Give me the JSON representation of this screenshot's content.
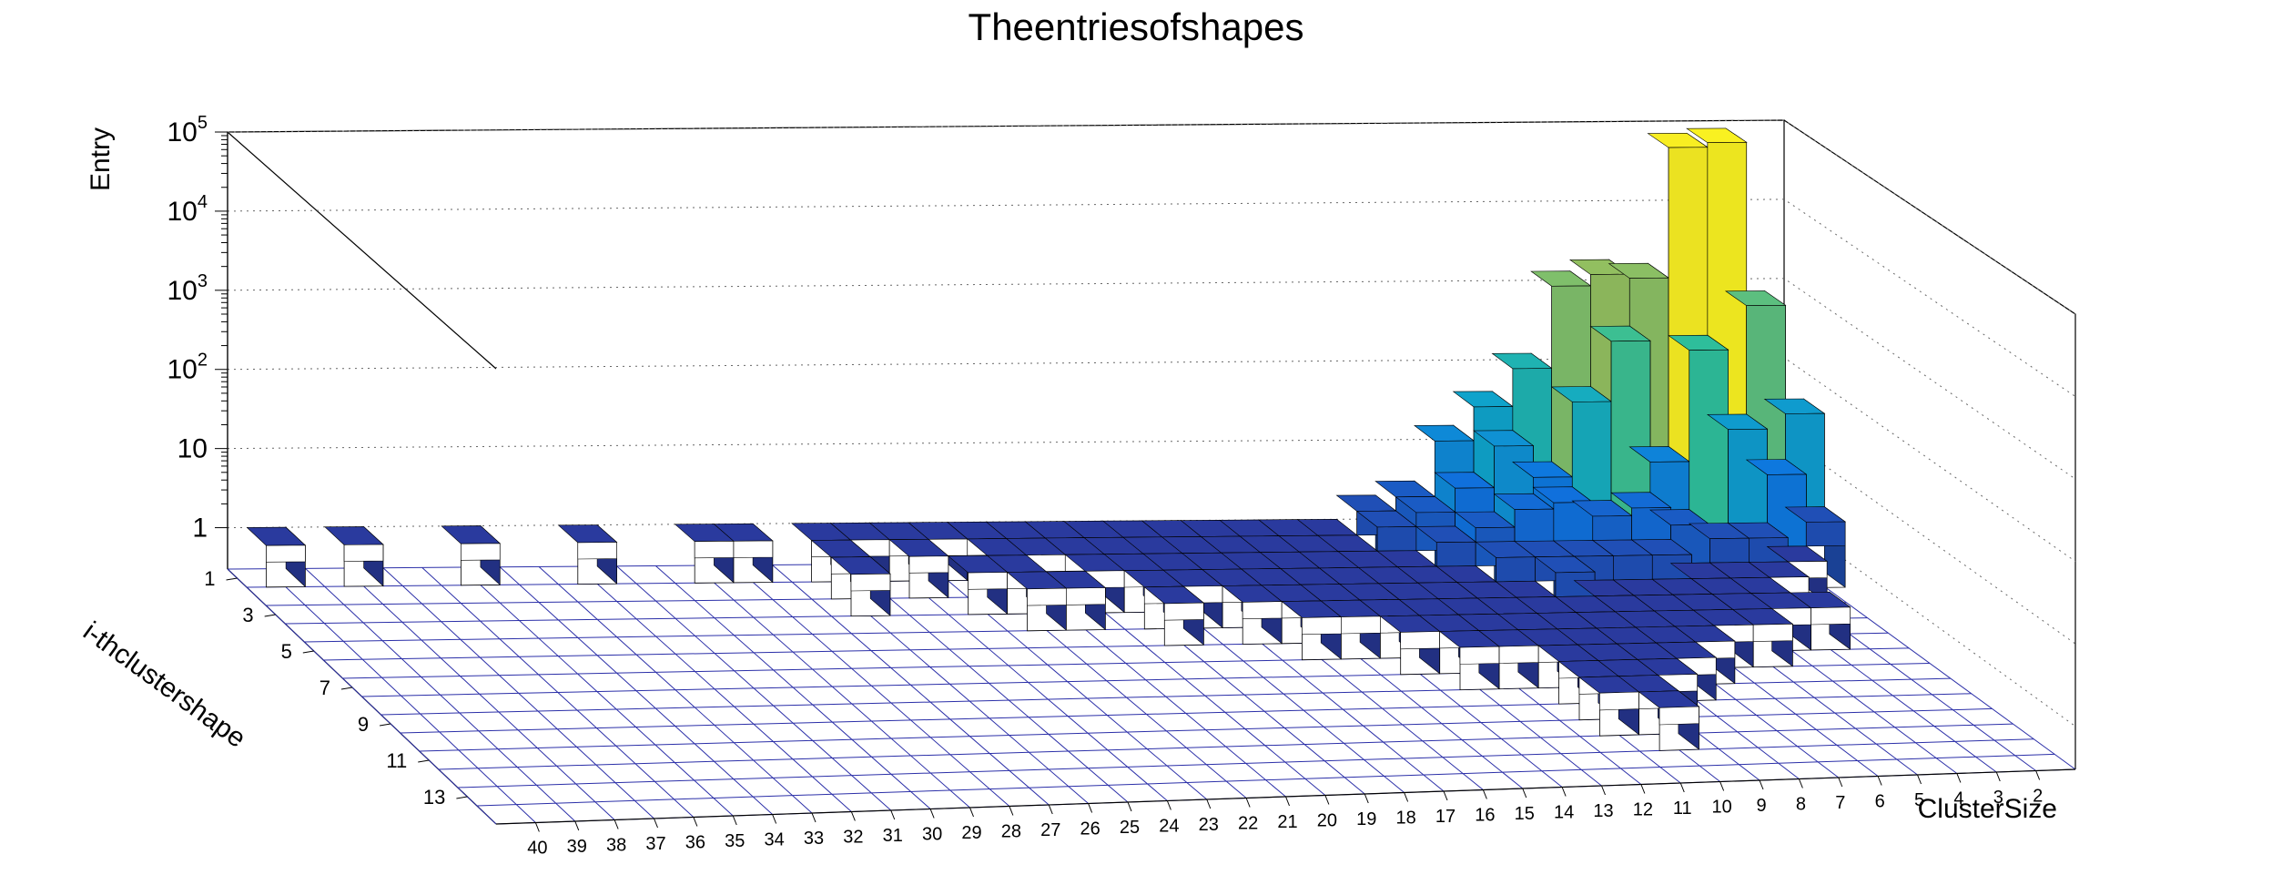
{
  "chart_data": {
    "type": "lego3d",
    "title": "Theentriesofshapes",
    "xlabel": "ClusterSize",
    "ylabel": "i-thclustershape",
    "zlabel": "Entry",
    "z_scale": "log",
    "z_ticks": [
      {
        "base": "1",
        "exp": ""
      },
      {
        "base": "10",
        "exp": ""
      },
      {
        "base": "10",
        "exp": "2"
      },
      {
        "base": "10",
        "exp": "3"
      },
      {
        "base": "10",
        "exp": "4"
      },
      {
        "base": "10",
        "exp": "5"
      }
    ],
    "x_ticks": [
      "40",
      "39",
      "38",
      "37",
      "36",
      "35",
      "34",
      "33",
      "32",
      "31",
      "30",
      "29",
      "28",
      "27",
      "26",
      "25",
      "24",
      "23",
      "22",
      "21",
      "20",
      "19",
      "18",
      "17",
      "16",
      "15",
      "14",
      "13",
      "12",
      "11",
      "10",
      "9",
      "8",
      "7",
      "6",
      "5",
      "4",
      "3",
      "2"
    ],
    "y_ticks": [
      "1",
      "3",
      "5",
      "7",
      "9",
      "11",
      "13"
    ],
    "xlim": [
      1,
      41
    ],
    "ylim": [
      0.5,
      14.5
    ],
    "zlim": [
      0.3,
      100000
    ],
    "grid": true,
    "palette": [
      "#2a3a9e",
      "#0e74e0",
      "#0fa7c9",
      "#2fbf9a",
      "#9cbf5a",
      "#e9c636",
      "#fbf71e"
    ],
    "bins": [
      {
        "x": 40,
        "y": 1,
        "z": 1
      },
      {
        "x": 38,
        "y": 1,
        "z": 1
      },
      {
        "x": 35,
        "y": 1,
        "z": 1
      },
      {
        "x": 32,
        "y": 1,
        "z": 1
      },
      {
        "x": 29,
        "y": 1,
        "z": 1
      },
      {
        "x": 28,
        "y": 1,
        "z": 1
      },
      {
        "x": 26,
        "y": 1,
        "z": 1
      },
      {
        "x": 25,
        "y": 1,
        "z": 1
      },
      {
        "x": 24,
        "y": 1,
        "z": 1
      },
      {
        "x": 23,
        "y": 1,
        "z": 1
      },
      {
        "x": 22,
        "y": 1,
        "z": 1
      },
      {
        "x": 21,
        "y": 1,
        "z": 1
      },
      {
        "x": 20,
        "y": 1,
        "z": 1
      },
      {
        "x": 19,
        "y": 1,
        "z": 1
      },
      {
        "x": 18,
        "y": 1,
        "z": 1
      },
      {
        "x": 17,
        "y": 1,
        "z": 1
      },
      {
        "x": 16,
        "y": 1,
        "z": 1
      },
      {
        "x": 15,
        "y": 1,
        "z": 1
      },
      {
        "x": 14,
        "y": 1,
        "z": 1
      },
      {
        "x": 13,
        "y": 1,
        "z": 1
      },
      {
        "x": 12,
        "y": 1,
        "z": 2
      },
      {
        "x": 11,
        "y": 1,
        "z": 3
      },
      {
        "x": 10,
        "y": 1,
        "z": 15
      },
      {
        "x": 9,
        "y": 1,
        "z": 40
      },
      {
        "x": 8,
        "y": 1,
        "z": 120
      },
      {
        "x": 7,
        "y": 1,
        "z": 1300
      },
      {
        "x": 6,
        "y": 1,
        "z": 1800
      },
      {
        "x": 5,
        "y": 1,
        "z": 1600
      },
      {
        "x": 4,
        "y": 1,
        "z": 70000
      },
      {
        "x": 3,
        "y": 1,
        "z": 80000
      },
      {
        "x": 2,
        "y": 1,
        "z": 700
      },
      {
        "x": 1,
        "y": 1,
        "z": 30
      },
      {
        "x": 26,
        "y": 2,
        "z": 1
      },
      {
        "x": 24,
        "y": 2,
        "z": 1
      },
      {
        "x": 22,
        "y": 2,
        "z": 1
      },
      {
        "x": 21,
        "y": 2,
        "z": 1
      },
      {
        "x": 20,
        "y": 2,
        "z": 1
      },
      {
        "x": 19,
        "y": 2,
        "z": 1
      },
      {
        "x": 18,
        "y": 2,
        "z": 1
      },
      {
        "x": 17,
        "y": 2,
        "z": 1
      },
      {
        "x": 16,
        "y": 2,
        "z": 1
      },
      {
        "x": 15,
        "y": 2,
        "z": 1
      },
      {
        "x": 14,
        "y": 2,
        "z": 1
      },
      {
        "x": 13,
        "y": 2,
        "z": 1
      },
      {
        "x": 12,
        "y": 2,
        "z": 2
      },
      {
        "x": 11,
        "y": 2,
        "z": 3
      },
      {
        "x": 10,
        "y": 2,
        "z": 6
      },
      {
        "x": 9,
        "y": 2,
        "z": 20
      },
      {
        "x": 8,
        "y": 2,
        "z": 8
      },
      {
        "x": 7,
        "y": 2,
        "z": 70
      },
      {
        "x": 6,
        "y": 2,
        "z": 400
      },
      {
        "x": 5,
        "y": 2,
        "z": 12
      },
      {
        "x": 4,
        "y": 2,
        "z": 300
      },
      {
        "x": 3,
        "y": 2,
        "z": 30
      },
      {
        "x": 2,
        "y": 2,
        "z": 8
      },
      {
        "x": 1,
        "y": 2,
        "z": 2
      },
      {
        "x": 26,
        "y": 3,
        "z": 1
      },
      {
        "x": 23,
        "y": 3,
        "z": 1
      },
      {
        "x": 22,
        "y": 3,
        "z": 1
      },
      {
        "x": 20,
        "y": 3,
        "z": 1
      },
      {
        "x": 19,
        "y": 3,
        "z": 1
      },
      {
        "x": 18,
        "y": 3,
        "z": 1
      },
      {
        "x": 17,
        "y": 3,
        "z": 1
      },
      {
        "x": 16,
        "y": 3,
        "z": 1
      },
      {
        "x": 15,
        "y": 3,
        "z": 1
      },
      {
        "x": 14,
        "y": 3,
        "z": 1
      },
      {
        "x": 13,
        "y": 3,
        "z": 1
      },
      {
        "x": 12,
        "y": 3,
        "z": 1
      },
      {
        "x": 11,
        "y": 3,
        "z": 2
      },
      {
        "x": 10,
        "y": 3,
        "z": 3
      },
      {
        "x": 9,
        "y": 3,
        "z": 5
      },
      {
        "x": 8,
        "y": 3,
        "z": 6
      },
      {
        "x": 7,
        "y": 3,
        "z": 4
      },
      {
        "x": 6,
        "y": 3,
        "z": 5
      },
      {
        "x": 5,
        "y": 3,
        "z": 3
      },
      {
        "x": 4,
        "y": 3,
        "z": 2
      },
      {
        "x": 3,
        "y": 3,
        "z": 2
      },
      {
        "x": 2,
        "y": 3,
        "z": 1
      },
      {
        "x": 22,
        "y": 4,
        "z": 1
      },
      {
        "x": 21,
        "y": 4,
        "z": 1
      },
      {
        "x": 19,
        "y": 4,
        "z": 1
      },
      {
        "x": 18,
        "y": 4,
        "z": 1
      },
      {
        "x": 17,
        "y": 4,
        "z": 1
      },
      {
        "x": 16,
        "y": 4,
        "z": 1
      },
      {
        "x": 15,
        "y": 4,
        "z": 1
      },
      {
        "x": 14,
        "y": 4,
        "z": 1
      },
      {
        "x": 13,
        "y": 4,
        "z": 1
      },
      {
        "x": 12,
        "y": 4,
        "z": 1
      },
      {
        "x": 11,
        "y": 4,
        "z": 1
      },
      {
        "x": 10,
        "y": 4,
        "z": 2
      },
      {
        "x": 9,
        "y": 4,
        "z": 2
      },
      {
        "x": 8,
        "y": 4,
        "z": 2
      },
      {
        "x": 7,
        "y": 4,
        "z": 2
      },
      {
        "x": 6,
        "y": 4,
        "z": 2
      },
      {
        "x": 5,
        "y": 4,
        "z": 1
      },
      {
        "x": 4,
        "y": 4,
        "z": 1
      },
      {
        "x": 3,
        "y": 4,
        "z": 1
      },
      {
        "x": 19,
        "y": 5,
        "z": 1
      },
      {
        "x": 17,
        "y": 5,
        "z": 1
      },
      {
        "x": 16,
        "y": 5,
        "z": 1
      },
      {
        "x": 15,
        "y": 5,
        "z": 1
      },
      {
        "x": 14,
        "y": 5,
        "z": 1
      },
      {
        "x": 13,
        "y": 5,
        "z": 1
      },
      {
        "x": 12,
        "y": 5,
        "z": 1
      },
      {
        "x": 11,
        "y": 5,
        "z": 1
      },
      {
        "x": 10,
        "y": 5,
        "z": 1
      },
      {
        "x": 9,
        "y": 5,
        "z": 2
      },
      {
        "x": 8,
        "y": 5,
        "z": 1
      },
      {
        "x": 7,
        "y": 5,
        "z": 1
      },
      {
        "x": 6,
        "y": 5,
        "z": 1
      },
      {
        "x": 5,
        "y": 5,
        "z": 1
      },
      {
        "x": 4,
        "y": 5,
        "z": 1
      },
      {
        "x": 16,
        "y": 6,
        "z": 1
      },
      {
        "x": 15,
        "y": 6,
        "z": 1
      },
      {
        "x": 14,
        "y": 6,
        "z": 1
      },
      {
        "x": 13,
        "y": 6,
        "z": 1
      },
      {
        "x": 12,
        "y": 6,
        "z": 1
      },
      {
        "x": 11,
        "y": 6,
        "z": 1
      },
      {
        "x": 10,
        "y": 6,
        "z": 1
      },
      {
        "x": 9,
        "y": 6,
        "z": 1
      },
      {
        "x": 8,
        "y": 6,
        "z": 1
      },
      {
        "x": 7,
        "y": 6,
        "z": 1
      },
      {
        "x": 6,
        "y": 6,
        "z": 1
      },
      {
        "x": 5,
        "y": 6,
        "z": 1
      },
      {
        "x": 4,
        "y": 6,
        "z": 1
      },
      {
        "x": 3,
        "y": 6,
        "z": 1
      },
      {
        "x": 14,
        "y": 7,
        "z": 1
      },
      {
        "x": 13,
        "y": 7,
        "z": 1
      },
      {
        "x": 12,
        "y": 7,
        "z": 1
      },
      {
        "x": 11,
        "y": 7,
        "z": 1
      },
      {
        "x": 10,
        "y": 7,
        "z": 1
      },
      {
        "x": 9,
        "y": 7,
        "z": 1
      },
      {
        "x": 8,
        "y": 7,
        "z": 1
      },
      {
        "x": 7,
        "y": 7,
        "z": 1
      },
      {
        "x": 6,
        "y": 7,
        "z": 1
      },
      {
        "x": 5,
        "y": 7,
        "z": 1
      },
      {
        "x": 13,
        "y": 8,
        "z": 1
      },
      {
        "x": 12,
        "y": 8,
        "z": 1
      },
      {
        "x": 11,
        "y": 8,
        "z": 1
      },
      {
        "x": 10,
        "y": 8,
        "z": 1
      },
      {
        "x": 9,
        "y": 8,
        "z": 1
      },
      {
        "x": 8,
        "y": 8,
        "z": 1
      },
      {
        "x": 7,
        "y": 8,
        "z": 1
      },
      {
        "x": 11,
        "y": 9,
        "z": 1
      },
      {
        "x": 10,
        "y": 9,
        "z": 1
      },
      {
        "x": 9,
        "y": 9,
        "z": 1
      },
      {
        "x": 8,
        "y": 9,
        "z": 1
      },
      {
        "x": 11,
        "y": 10,
        "z": 1
      },
      {
        "x": 10,
        "y": 10,
        "z": 1
      },
      {
        "x": 9,
        "y": 10,
        "z": 1
      },
      {
        "x": 11,
        "y": 11,
        "z": 1
      },
      {
        "x": 10,
        "y": 11,
        "z": 1
      },
      {
        "x": 10,
        "y": 12,
        "z": 1
      }
    ]
  }
}
